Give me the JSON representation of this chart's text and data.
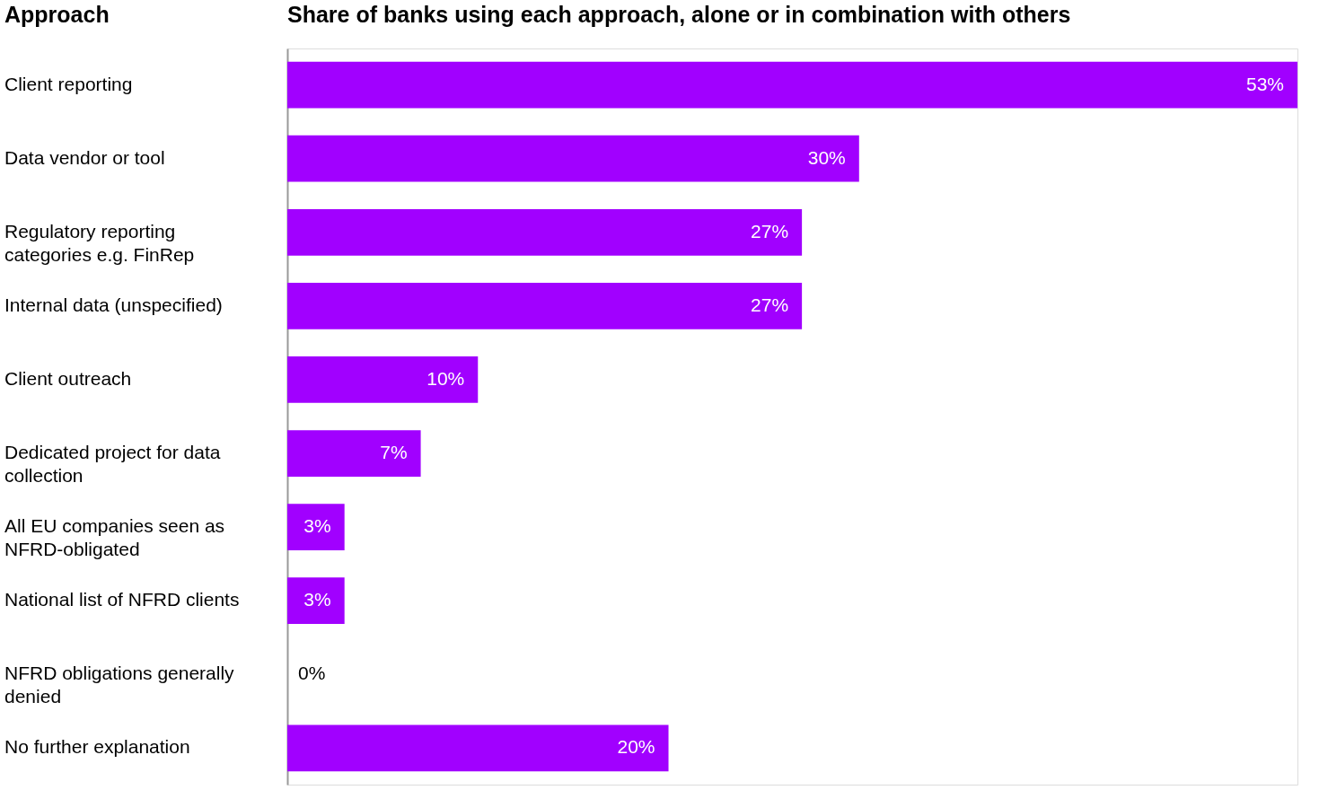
{
  "chart_data": {
    "type": "bar",
    "orientation": "horizontal",
    "title": "Share of banks using each approach, alone or in combination with others",
    "ylabel": "Approach",
    "categories": [
      "Client reporting",
      "Data vendor or tool",
      "Regulatory reporting categories e.g. FinRep",
      "Internal data (unspecified)",
      "Client outreach",
      "Dedicated project for data collection",
      "All EU companies seen as NFRD-obligated",
      "National list of NFRD clients",
      "NFRD obligations generally denied",
      "No further explanation"
    ],
    "values": [
      53,
      30,
      27,
      27,
      10,
      7,
      3,
      3,
      0,
      20
    ],
    "value_labels": [
      "53%",
      "30%",
      "27%",
      "27%",
      "10%",
      "7%",
      "3%",
      "3%",
      "0%",
      "20%"
    ],
    "color": "#a100ff",
    "grid": false
  }
}
